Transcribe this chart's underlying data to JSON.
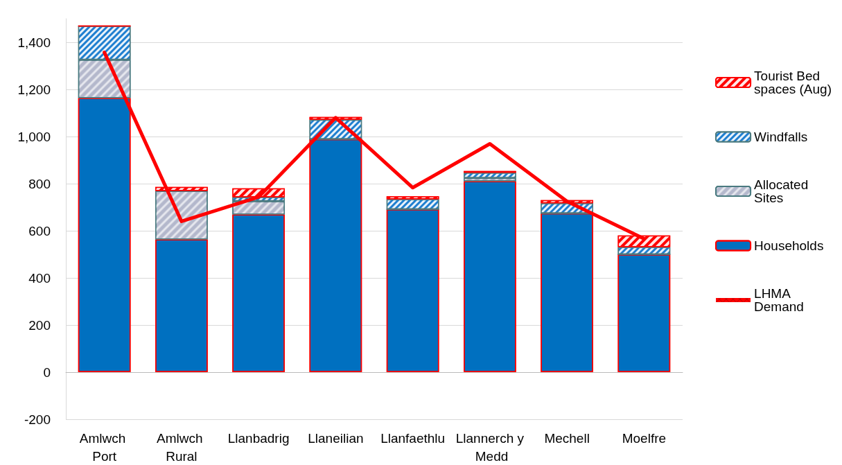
{
  "chart_data": {
    "type": "bar",
    "stacked": true,
    "categories": [
      "Amlwch Port",
      "Amlwch Rural",
      "Llanbadrig",
      "Llaneilian",
      "Llanfaethlu",
      "Llannerch y Medd",
      "Mechell",
      "Moelfre"
    ],
    "series": [
      {
        "name": "Households",
        "color": "#0070c0",
        "values": [
          1163,
          563,
          669,
          989,
          691,
          810,
          674,
          500
        ]
      },
      {
        "name": "Allocated Sites",
        "color": "#b4b8cc",
        "values": [
          163,
          206,
          57,
          0,
          0,
          14,
          0,
          0
        ]
      },
      {
        "name": "Windfalls",
        "color": "#1f7fd0",
        "values": [
          143,
          0,
          17,
          82,
          43,
          22,
          43,
          31
        ]
      },
      {
        "name": "Tourist Bed spaces (Aug)",
        "color": "#ff0000",
        "values": [
          0,
          17,
          37,
          12,
          12,
          8,
          13,
          49
        ]
      },
      {
        "name": "LHMA Demand",
        "type": "line",
        "color": "#ff0000",
        "values": [
          1357,
          640,
          743,
          1080,
          783,
          969,
          725,
          566
        ]
      }
    ],
    "ylim": [
      -200,
      1500
    ],
    "yticks": [
      {
        "value": -200,
        "label": "-200"
      },
      0,
      200,
      400,
      600,
      800,
      {
        "value": 1000,
        "label": "1,000"
      },
      {
        "value": 1200,
        "label": "1,200"
      },
      {
        "value": 1400,
        "label": "1,400"
      }
    ],
    "grid": "y",
    "legend": "right",
    "marker": "none",
    "line_style": "solid"
  }
}
